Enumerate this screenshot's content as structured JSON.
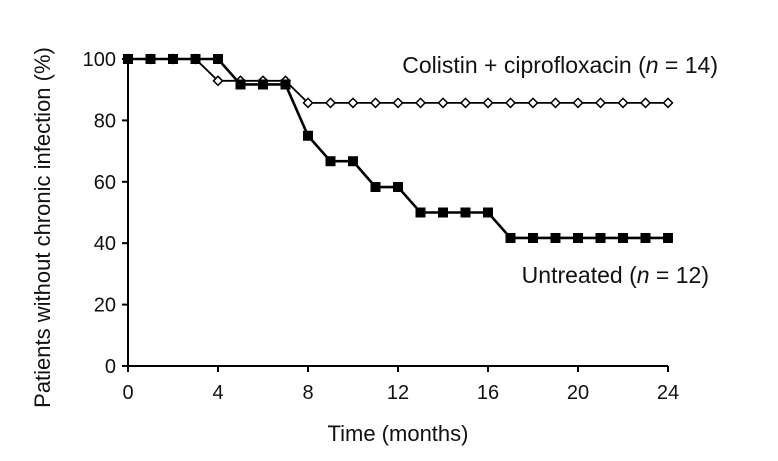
{
  "chart_data": {
    "type": "line",
    "title": "",
    "xlabel": "Time (months)",
    "ylabel": "Patients without chronic infection (%)",
    "xlim": [
      0,
      24
    ],
    "ylim": [
      0,
      100
    ],
    "x_ticks": [
      0,
      4,
      8,
      12,
      16,
      20,
      24
    ],
    "y_ticks": [
      0,
      20,
      40,
      60,
      80,
      100
    ],
    "grid": false,
    "legend": "none",
    "series": [
      {
        "name_parts": [
          "Colistin + ciprofloxacin (",
          "n",
          " = 14)"
        ],
        "marker": "open-diamond",
        "color": "#000000",
        "x": [
          0,
          1,
          2,
          3,
          4,
          5,
          6,
          7,
          8,
          9,
          10,
          11,
          12,
          13,
          14,
          15,
          16,
          17,
          18,
          19,
          20,
          21,
          22,
          23,
          24
        ],
        "y": [
          100,
          100,
          100,
          100,
          92.9,
          92.9,
          92.9,
          92.9,
          85.7,
          85.7,
          85.7,
          85.7,
          85.7,
          85.7,
          85.7,
          85.7,
          85.7,
          85.7,
          85.7,
          85.7,
          85.7,
          85.7,
          85.7,
          85.7,
          85.7
        ]
      },
      {
        "name_parts": [
          "Untreated (",
          "n",
          " = 12)"
        ],
        "marker": "filled-square",
        "color": "#000000",
        "x": [
          0,
          1,
          2,
          3,
          4,
          5,
          6,
          7,
          8,
          9,
          10,
          11,
          12,
          13,
          14,
          15,
          16,
          17,
          18,
          19,
          20,
          21,
          22,
          23,
          24
        ],
        "y": [
          100,
          100,
          100,
          100,
          100,
          91.7,
          91.7,
          91.7,
          75,
          66.7,
          66.7,
          58.3,
          58.3,
          50,
          50,
          50,
          50,
          41.7,
          41.7,
          41.7,
          41.7,
          41.7,
          41.7,
          41.7,
          41.7
        ]
      }
    ]
  }
}
